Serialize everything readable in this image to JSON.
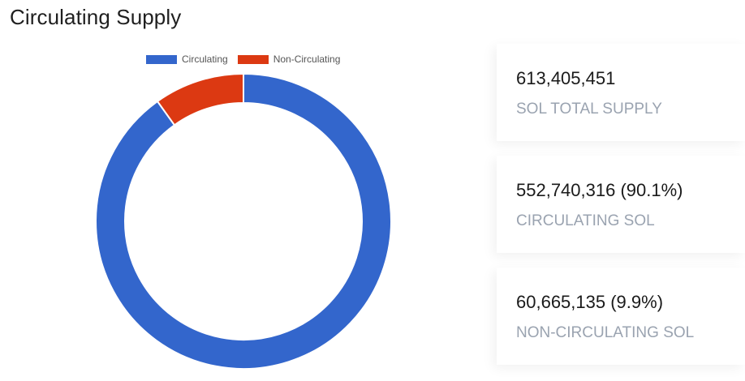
{
  "title": "Circulating Supply",
  "chart_data": {
    "type": "pie",
    "variant": "doughnut",
    "title": "Circulating Supply",
    "legend_position": "top",
    "categories": [
      "Circulating",
      "Non-Circulating"
    ],
    "values": [
      552740316,
      60665135
    ],
    "colors": [
      "#3366cc",
      "#dc3912"
    ]
  },
  "stats": [
    {
      "value": "613,405,451",
      "label": "SOL TOTAL SUPPLY"
    },
    {
      "value": "552,740,316 (90.1%)",
      "label": "CIRCULATING SOL"
    },
    {
      "value": "60,665,135 (9.9%)",
      "label": "NON-CIRCULATING SOL"
    }
  ]
}
